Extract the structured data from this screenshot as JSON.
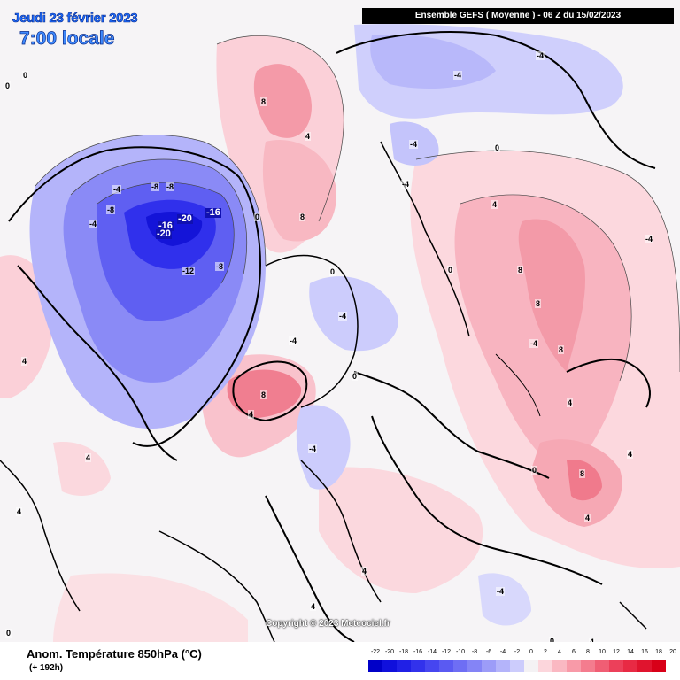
{
  "title": {
    "date": "Jeudi 23 février 2023",
    "time": "7:00 locale",
    "model_header": "Ensemble GEFS  ( Moyenne )  -  06 Z du 15/02/2023"
  },
  "copyright": "Copyright © 2023 Meteociel.fr",
  "legend": {
    "variable": "Anom. Température 850hPa (°C)",
    "lead_time": "(+ 192h)",
    "ticks": [
      "-22",
      "-20",
      "-18",
      "-16",
      "-14",
      "-12",
      "-10",
      "-8",
      "-6",
      "-4",
      "-2",
      "0",
      "2",
      "4",
      "6",
      "8",
      "10",
      "12",
      "14",
      "16",
      "18",
      "20"
    ],
    "colors": [
      "#0000c8",
      "#1010dc",
      "#2020e6",
      "#3232ec",
      "#4646f0",
      "#5a5af2",
      "#6e6ef4",
      "#8484f6",
      "#9c9cf8",
      "#b4b4fa",
      "#ccccfc",
      "#f4f2f4",
      "#fcd6dc",
      "#fab8c2",
      "#f89aa8",
      "#f47c8e",
      "#f05e74",
      "#ec405a",
      "#e82a44",
      "#e0142e",
      "#d80018"
    ]
  },
  "contour_labels": [
    {
      "text": "-4"
    },
    {
      "text": "-4"
    },
    {
      "text": "-4"
    },
    {
      "text": "-8"
    },
    {
      "text": "-8"
    },
    {
      "text": "-16"
    },
    {
      "text": "-20"
    },
    {
      "text": "-16"
    },
    {
      "text": "-20"
    },
    {
      "text": "-12"
    },
    {
      "text": "-8"
    },
    {
      "text": "-4"
    },
    {
      "text": "-8"
    },
    {
      "text": "-4"
    },
    {
      "text": "-4"
    },
    {
      "text": "-4"
    },
    {
      "text": "-4"
    },
    {
      "text": "-4"
    },
    {
      "text": "-4"
    },
    {
      "text": "-4"
    },
    {
      "text": "0"
    },
    {
      "text": "0"
    },
    {
      "text": "0"
    },
    {
      "text": "0"
    },
    {
      "text": "0"
    },
    {
      "text": "0"
    },
    {
      "text": "0"
    },
    {
      "text": "0"
    },
    {
      "text": "0"
    },
    {
      "text": "0"
    },
    {
      "text": "4"
    },
    {
      "text": "4"
    },
    {
      "text": "4"
    },
    {
      "text": "4"
    },
    {
      "text": "4"
    },
    {
      "text": "4"
    },
    {
      "text": "4"
    },
    {
      "text": "4"
    },
    {
      "text": "4"
    },
    {
      "text": "4"
    },
    {
      "text": "8"
    },
    {
      "text": "8"
    },
    {
      "text": "8"
    },
    {
      "text": "8"
    },
    {
      "text": "8"
    },
    {
      "text": "8"
    },
    {
      "text": "8"
    },
    {
      "text": "4"
    },
    {
      "text": "-4"
    },
    {
      "text": "4"
    }
  ]
}
